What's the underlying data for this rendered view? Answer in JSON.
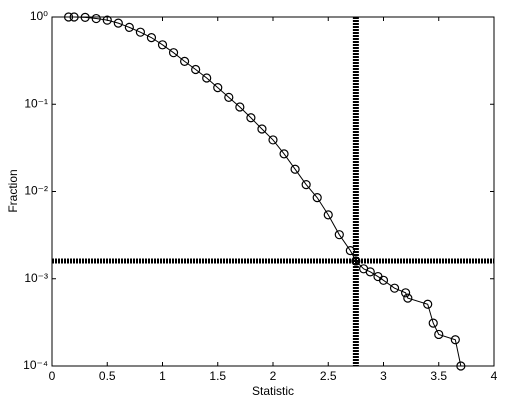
{
  "chart_data": {
    "type": "line",
    "x_label": "Statistic",
    "y_label": "Fraction",
    "log_y": true,
    "color": "#000000",
    "marker": "circle",
    "x": [
      0.15,
      0.2,
      0.3,
      0.4,
      0.5,
      0.6,
      0.7,
      0.8,
      0.9,
      1.0,
      1.1,
      1.2,
      1.3,
      1.4,
      1.5,
      1.6,
      1.7,
      1.8,
      1.9,
      2.0,
      2.1,
      2.2,
      2.3,
      2.4,
      2.5,
      2.6,
      2.7,
      2.75,
      2.82,
      2.88,
      2.95,
      3.0,
      3.1,
      3.2,
      3.22,
      3.4,
      3.45,
      3.5,
      3.65,
      3.7
    ],
    "values": [
      1,
      1,
      0.99,
      0.96,
      0.92,
      0.85,
      0.76,
      0.67,
      0.58,
      0.48,
      0.39,
      0.31,
      0.25,
      0.2,
      0.155,
      0.12,
      0.093,
      0.07,
      0.052,
      0.039,
      0.027,
      0.018,
      0.012,
      0.0085,
      0.0054,
      0.0032,
      0.0021,
      0.0016,
      0.0013,
      0.0012,
      0.00106,
      0.00096,
      0.00078,
      0.00069,
      0.0006,
      0.00051,
      0.00031,
      0.00023,
      0.0002,
      0.0001
    ],
    "vline": 2.75,
    "hline": 0.0016,
    "xlim": [
      0,
      4
    ],
    "xticks": [
      0,
      0.5,
      1,
      1.5,
      2,
      2.5,
      3,
      3.5,
      4
    ],
    "ylim": [
      0.0001,
      1
    ],
    "yticks": [
      {
        "value": 0.0001,
        "label": "10⁻⁴"
      },
      {
        "value": 0.001,
        "label": "10⁻³"
      },
      {
        "value": 0.01,
        "label": "10⁻²"
      },
      {
        "value": 0.1,
        "label": "10⁻¹"
      },
      {
        "value": 1,
        "label": "10⁰"
      }
    ]
  }
}
